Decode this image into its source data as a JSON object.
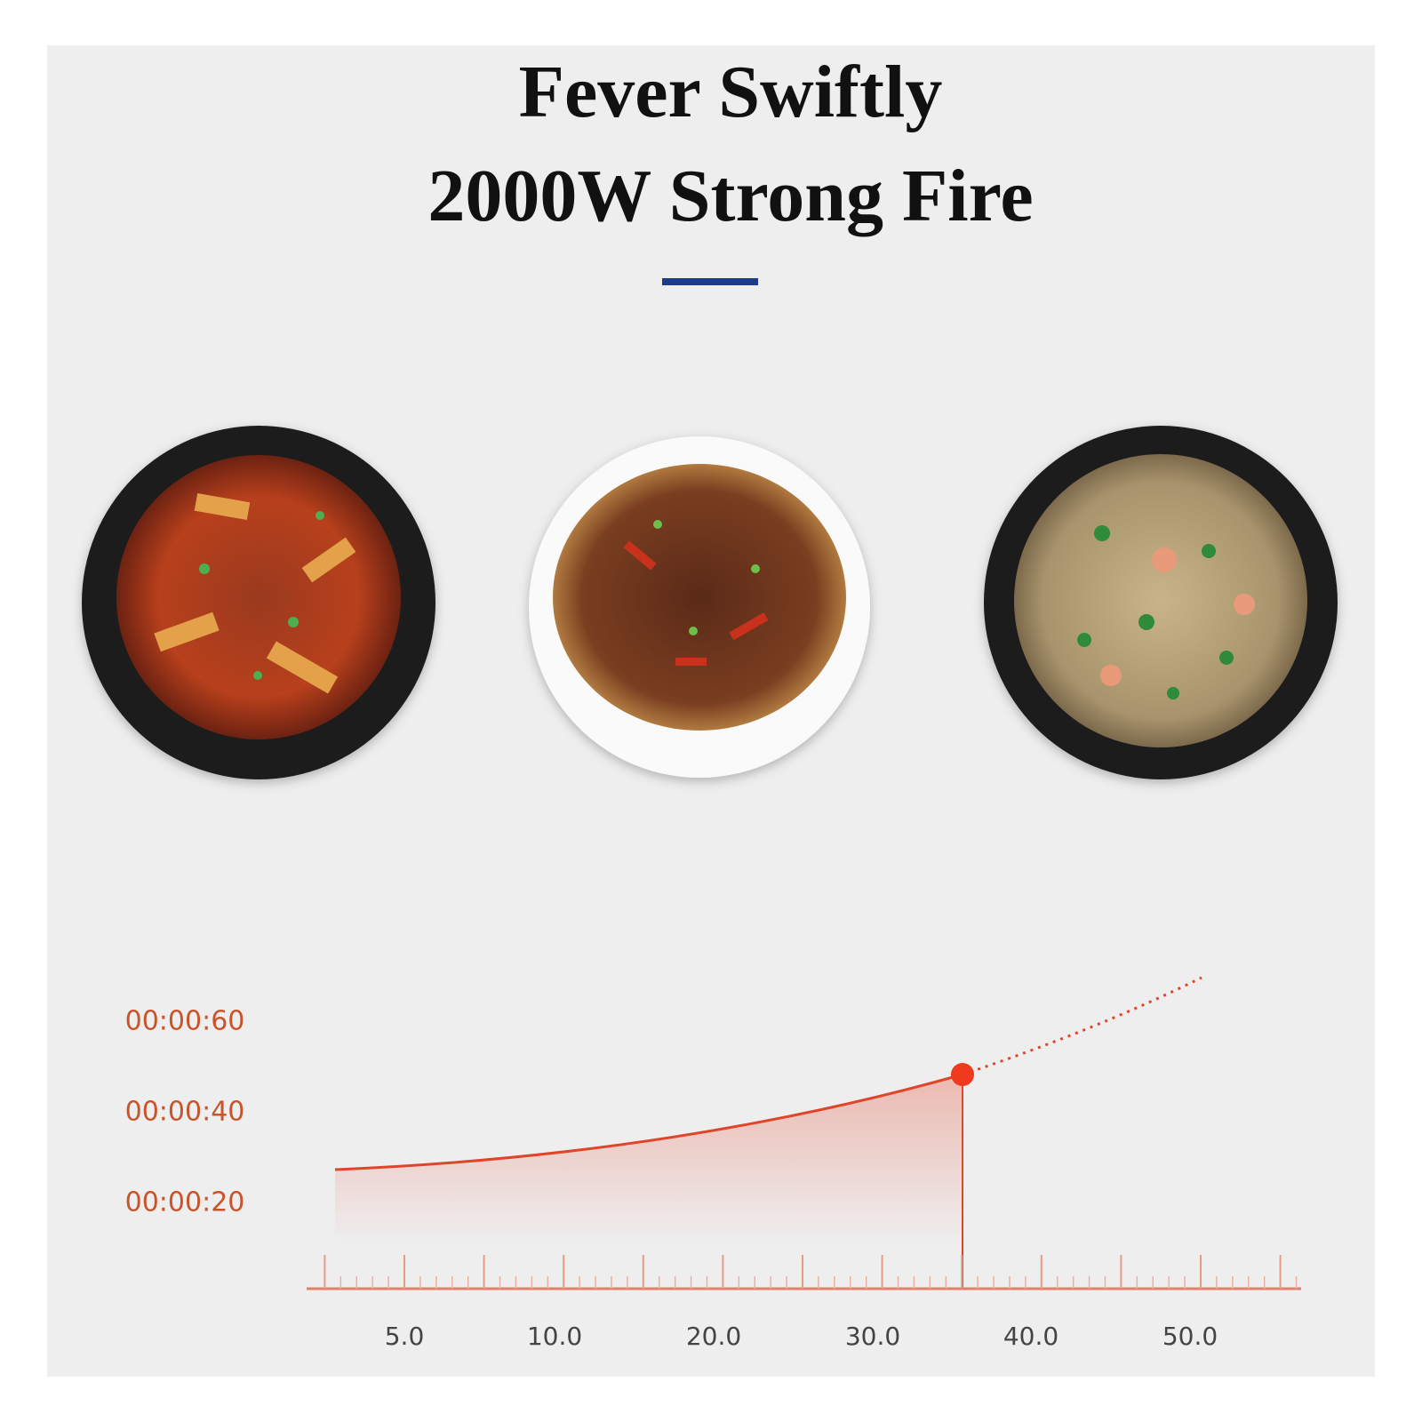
{
  "header": {
    "title_lines": [
      "Fever Swiftly",
      "2000W Strong Fire"
    ]
  },
  "chart": {
    "y_labels": [
      "00:00:60",
      "00:00:40",
      "00:00:20"
    ],
    "x_labels": [
      "5.0",
      "10.0",
      "20.0",
      "30.0",
      "40.0",
      "50.0"
    ]
  }
}
